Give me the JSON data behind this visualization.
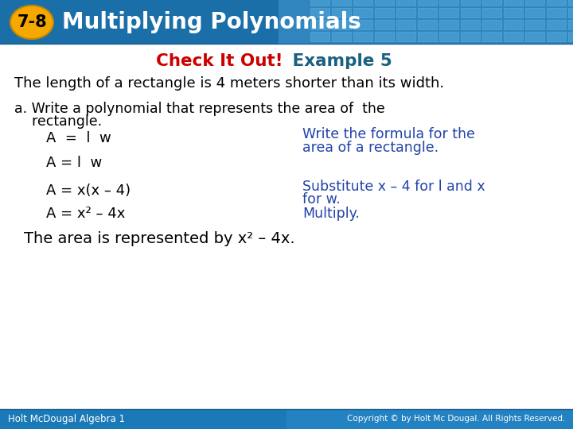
{
  "title_badge_text": "7-8",
  "title_text": "Multiplying Polynomials",
  "header_bg_left": "#1a6fa8",
  "header_bg_right": "#3a8fc8",
  "badge_color": "#f5a800",
  "badge_border": "#c88800",
  "title_text_color": "#ffffff",
  "body_bg_color": "#ffffff",
  "subtitle_red": "Check It Out!",
  "subtitle_blue": " Example 5",
  "subtitle_red_color": "#cc0000",
  "subtitle_blue_color": "#1a6080",
  "line1": "The length of a rectangle is 4 meters shorter than its width.",
  "body_text_color": "#000000",
  "note_color": "#2244aa",
  "line2a": "a. Write a polynomial that represents the area of  the",
  "line2b": "    rectangle.",
  "line3_left": "A  =  l  w",
  "line3_right": "Write the formula for the",
  "line4_right": "area of a rectangle.",
  "line5_left": "A = l  w",
  "line6_left": "A = x(x – 4)",
  "line6_right": "Substitute x – 4 for l and x",
  "line7_right": "for w.",
  "line8_left": "A = x² – 4x",
  "line8_right": "Multiply.",
  "line9": "The area is represented by x² – 4x.",
  "footer_left": "Holt McDougal Algebra 1",
  "footer_right": "Copyright © by Holt Mc Dougal. All Rights Reserved.",
  "footer_bg": "#1a7ab8",
  "grid_tile_color": "#4a9fd4",
  "grid_tile_border": "#5ab0e0"
}
